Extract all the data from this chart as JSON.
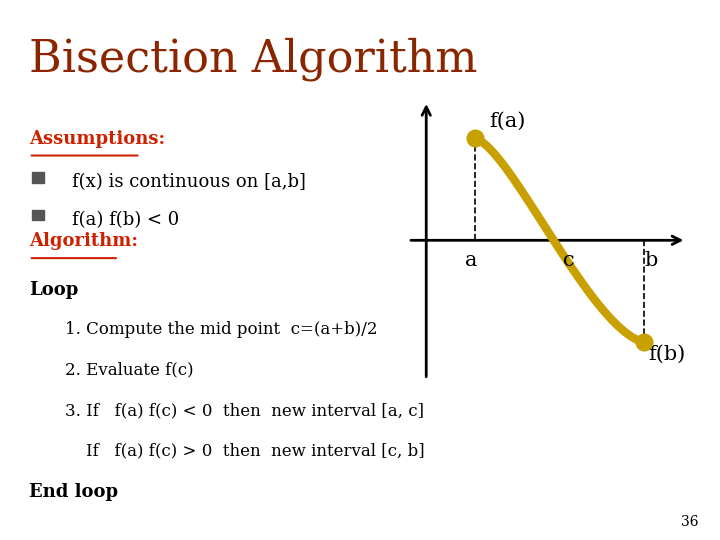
{
  "bg_color": "#ffffff",
  "title": "Bisection Algorithm",
  "title_color": "#8B2500",
  "title_fontsize": 32,
  "assumptions_label": "Assumptions:",
  "assumptions_color": "#cc2200",
  "bullet1": "f(x) is continuous on [a,b]",
  "bullet2": "f(a) f(b) < 0",
  "algorithm_label": "Algorithm:",
  "algorithm_color": "#cc2200",
  "loop_text": "Loop",
  "step1": "1. Compute the mid point  c=(a+b)/2",
  "step2": "2. Evaluate f(c)",
  "step3a": "3. If   f(a) f(c) < 0  then  new interval [a, c]",
  "step3b": "    If   f(a) f(c) > 0  then  new interval [c, b]",
  "endloop": "End loop",
  "page_number": "36",
  "curve_color": "#C8A000",
  "text_color": "#000000",
  "bullet_color": "#555555"
}
